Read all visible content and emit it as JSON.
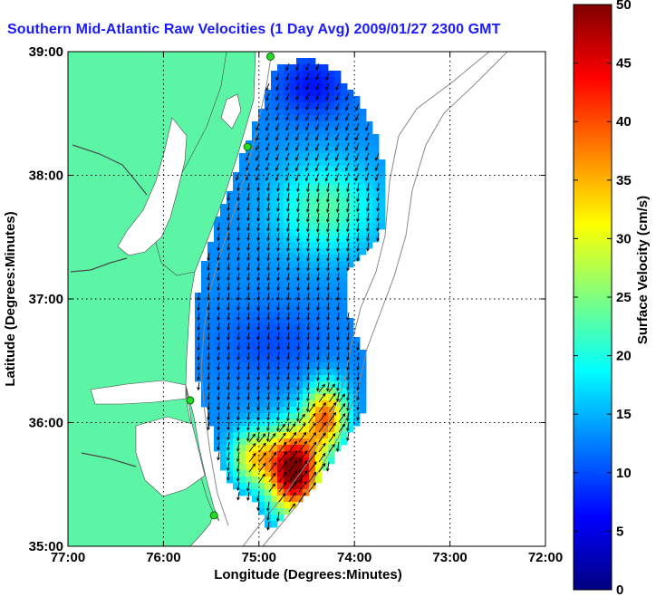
{
  "title": "Southern Mid-Atlantic Raw Velocities (1 Day Avg) 2009/01/27 2300 GMT",
  "x_axis": {
    "label": "Longitude (Degrees:Minutes)",
    "ticks": [
      "77:00",
      "76:00",
      "75:00",
      "74:00",
      "73:00",
      "72:00"
    ],
    "range": [
      -77,
      -72
    ]
  },
  "y_axis": {
    "label": "Latitude (Degrees:Minutes)",
    "ticks": [
      "35:00",
      "36:00",
      "37:00",
      "38:00",
      "39:00"
    ],
    "range": [
      35,
      39
    ]
  },
  "colorbar": {
    "label": "Surface Velocity (cm/s)",
    "ticks": [
      "0",
      "5",
      "10",
      "15",
      "20",
      "25",
      "30",
      "35",
      "40",
      "45",
      "50"
    ],
    "range": [
      0,
      50
    ]
  },
  "colors": {
    "land": "#5cf5a5",
    "title": "#1a1aff",
    "station": "#22dd22",
    "arrow": "#000000"
  },
  "stations": [
    {
      "lon": -74.88,
      "lat": 38.96
    },
    {
      "lon": -75.12,
      "lat": 38.23
    },
    {
      "lon": -75.72,
      "lat": 36.18
    },
    {
      "lon": -75.47,
      "lat": 35.25
    }
  ]
}
